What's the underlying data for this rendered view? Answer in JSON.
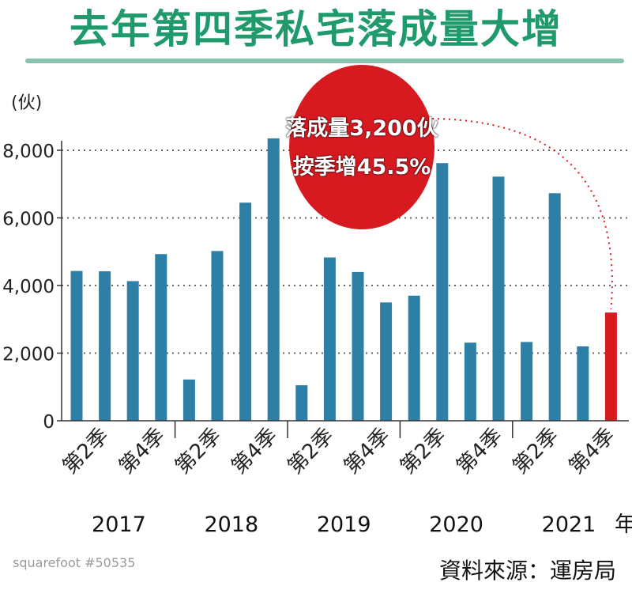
{
  "title": "去年第四季私宅落成量大增",
  "unit_label": "(伙)",
  "watermark": "squarefoot #50535",
  "source": "資料來源：運房局",
  "callout": {
    "line1": "落成量3,200伙",
    "line2": "按季增45.5%"
  },
  "colors": {
    "title": "#1f9a6d",
    "bar": "#2d7fa6",
    "highlight_bar": "#d71920",
    "callout": "#d71920"
  },
  "chart_data": {
    "type": "bar",
    "title": "去年第四季私宅落成量大增",
    "ylabel": "(伙)",
    "xlabel": "",
    "ylim": [
      0,
      8500
    ],
    "yticks": [
      0,
      2000,
      4000,
      6000,
      8000
    ],
    "ytick_labels": [
      "0",
      "2,000",
      "4,000",
      "6,000",
      "8,000"
    ],
    "grid": "horizontal dotted",
    "categories": [
      "2017 第1季",
      "2017 第2季",
      "2017 第3季",
      "2017 第4季",
      "2018 第1季",
      "2018 第2季",
      "2018 第3季",
      "2018 第4季",
      "2019 第1季",
      "2019 第2季",
      "2019 第3季",
      "2019 第4季",
      "2020 第1季",
      "2020 第2季",
      "2020 第3季",
      "2020 第4季",
      "2021 第1季",
      "2021 第2季",
      "2021 第3季",
      "2021 第4季"
    ],
    "values": [
      4430,
      4420,
      4130,
      4930,
      1220,
      5020,
      6450,
      8350,
      1050,
      4830,
      4400,
      3500,
      3700,
      7620,
      2310,
      7220,
      2330,
      6730,
      2200,
      3200
    ],
    "highlight_index": 19,
    "quarter_labels": [
      "第2季",
      "第4季"
    ],
    "years": [
      "2017",
      "2018",
      "2019",
      "2020",
      "2021"
    ],
    "year_suffix": "年"
  }
}
